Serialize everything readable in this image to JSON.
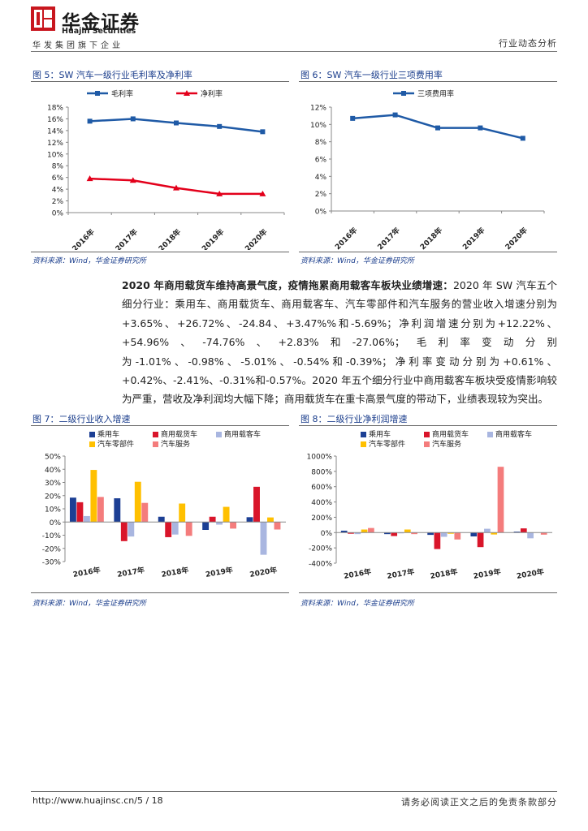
{
  "header": {
    "brand_cn": "华金证券",
    "brand_en": "Huajin Securities",
    "group_text": "华发集团旗下企业",
    "report_type": "行业动态分析"
  },
  "colors": {
    "brand": "#c8161e",
    "title_blue": "#1a3d8c",
    "series_blue": "#1f5aa6",
    "series_red": "#e3001b"
  },
  "fig5": {
    "title": "图 5：SW 汽车一级行业毛利率及净利率",
    "source": "资料来源：Wind，华金证券研究所",
    "chart_data": {
      "type": "line",
      "categories": [
        "2016年",
        "2017年",
        "2018年",
        "2019年",
        "2020年"
      ],
      "series": [
        {
          "name": "毛利率",
          "values": [
            15.6,
            16.0,
            15.3,
            14.7,
            13.8
          ],
          "color": "#1f5aa6"
        },
        {
          "name": "净利率",
          "values": [
            5.8,
            5.5,
            4.2,
            3.2,
            3.2
          ],
          "color": "#e3001b"
        }
      ],
      "ylim": [
        0,
        18
      ],
      "yticks": [
        "0%",
        "2%",
        "4%",
        "6%",
        "8%",
        "10%",
        "12%",
        "14%",
        "16%",
        "18%"
      ]
    }
  },
  "fig6": {
    "title": "图 6：SW 汽车一级行业三项费用率",
    "source": "资料来源：Wind，华金证券研究所",
    "chart_data": {
      "type": "line",
      "categories": [
        "2016年",
        "2017年",
        "2018年",
        "2019年",
        "2020年"
      ],
      "series": [
        {
          "name": "三项费用率",
          "values": [
            10.7,
            11.1,
            9.6,
            9.6,
            8.4
          ],
          "color": "#1f5aa6"
        }
      ],
      "ylim": [
        0,
        12
      ],
      "yticks": [
        "0%",
        "2%",
        "4%",
        "6%",
        "8%",
        "10%",
        "12%"
      ]
    }
  },
  "paragraph": {
    "bold": "2020 年商用载货车维持高景气度，疫情拖累商用载客车板块业绩增速：",
    "text": "2020 年 SW 汽车五个细分行业：乘用车、商用载货车、商用载客车、汽车零部件和汽车服务的营业收入增速分别为+3.65%、+26.72%、-24.84、+3.47%%和-5.69%；净利润增速分别为+12.22%、+54.96%、-74.76%、+2.83%和-27.06%；毛利率变动分别为-1.01%、-0.98%、-5.01%、-0.54%和-0.39%；净利率变动分别为+0.61%、+0.42%、-2.41%、-0.31%和-0.57%。2020 年五个细分行业中商用载客车板块受疫情影响较为严重，营收及净利润均大幅下降；商用载货车在重卡高景气度的带动下，业绩表现较为突出。"
  },
  "fig7": {
    "title": "图 7：二级行业收入增速",
    "source": "资料来源：Wind，华金证券研究所",
    "chart_data": {
      "type": "bar",
      "categories": [
        "2016年",
        "2017年",
        "2018年",
        "2019年",
        "2020年"
      ],
      "series": [
        {
          "name": "乘用车",
          "values": [
            18.5,
            18.0,
            4.0,
            -6.0,
            3.65
          ],
          "color": "#1c3f94"
        },
        {
          "name": "商用载货车",
          "values": [
            15.0,
            -14.5,
            -11.5,
            4.0,
            26.72
          ],
          "color": "#d9152a"
        },
        {
          "name": "商用载客车",
          "values": [
            4.5,
            -11.0,
            -9.5,
            -2.0,
            -24.84
          ],
          "color": "#a9b6e0"
        },
        {
          "name": "汽车零部件",
          "values": [
            39.5,
            30.5,
            14.0,
            11.5,
            3.47
          ],
          "color": "#ffc000"
        },
        {
          "name": "汽车服务",
          "values": [
            19.0,
            14.5,
            -10.5,
            -5.0,
            -5.69
          ],
          "color": "#f47c7c"
        }
      ],
      "ylim": [
        -30,
        50
      ],
      "yticks": [
        "-30%",
        "-20%",
        "-10%",
        "0%",
        "10%",
        "20%",
        "30%",
        "40%",
        "50%"
      ]
    }
  },
  "fig8": {
    "title": "图 8：二级行业净利润增速",
    "source": "资料来源：Wind，华金证券研究所",
    "chart_data": {
      "type": "bar",
      "categories": [
        "2016年",
        "2017年",
        "2018年",
        "2019年",
        "2020年"
      ],
      "series": [
        {
          "name": "乘用车",
          "values": [
            25,
            -20,
            -30,
            -50,
            12.22
          ],
          "color": "#1c3f94"
        },
        {
          "name": "商用载货车",
          "values": [
            -15,
            -45,
            -215,
            -190,
            54.96
          ],
          "color": "#d9152a"
        },
        {
          "name": "商用载客车",
          "values": [
            -20,
            -10,
            -55,
            50,
            -74.76
          ],
          "color": "#a9b6e0"
        },
        {
          "name": "汽车零部件",
          "values": [
            40,
            40,
            -15,
            -25,
            2.83
          ],
          "color": "#ffc000"
        },
        {
          "name": "汽车服务",
          "values": [
            60,
            -20,
            -90,
            860,
            -27.06
          ],
          "color": "#f47c7c"
        }
      ],
      "ylim": [
        -400,
        1000
      ],
      "yticks": [
        "-400%",
        "-200%",
        "0%",
        "200%",
        "400%",
        "600%",
        "800%",
        "1000%"
      ]
    }
  },
  "footer": {
    "url": "http://www.huajinsc.cn/5 / 18",
    "disclaimer": "请务必阅读正文之后的免责条款部分"
  }
}
